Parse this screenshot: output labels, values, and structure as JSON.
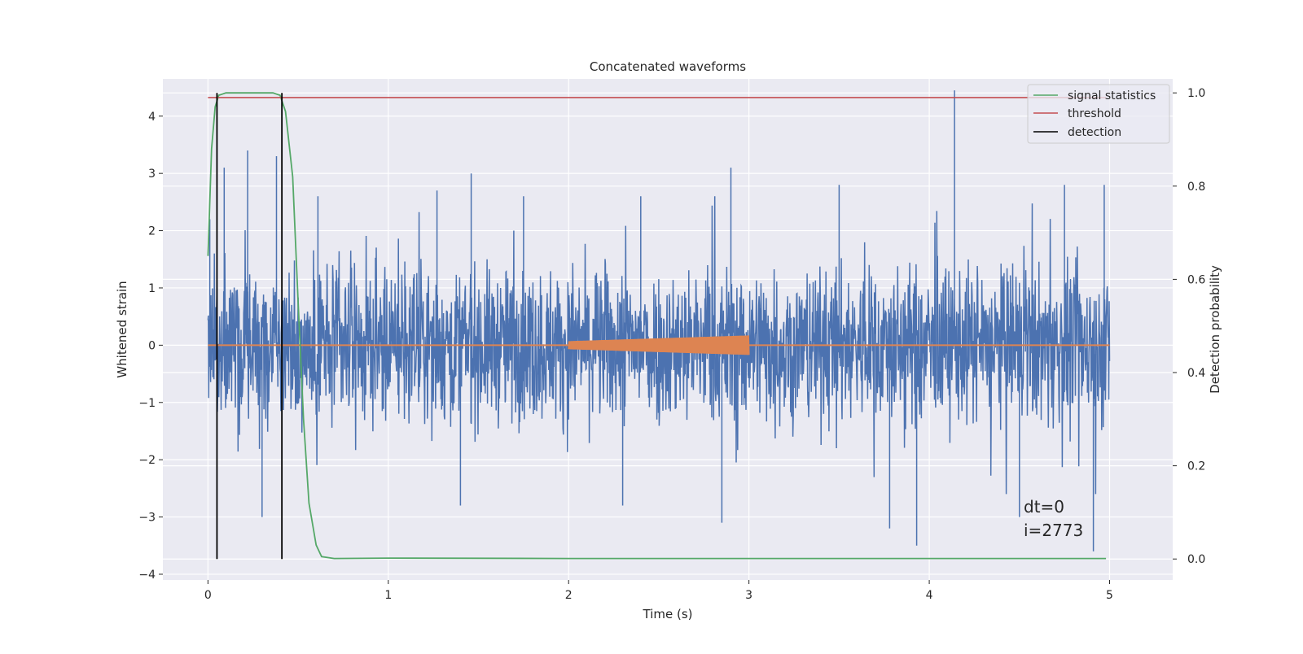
{
  "chart_data": {
    "type": "line",
    "title": "Concatenated waveforms",
    "xlabel": "Time (s)",
    "ylabel": "Whitened strain",
    "ylabel_right": "Detection probability",
    "xlim": [
      -0.25,
      5.35
    ],
    "ylim": [
      -4.1,
      4.65
    ],
    "ylim_right": [
      -0.045,
      1.03
    ],
    "x_ticks": [
      0,
      1,
      2,
      3,
      4,
      5
    ],
    "y_ticks": [
      -4,
      -3,
      -2,
      -1,
      0,
      1,
      2,
      3,
      4
    ],
    "y_ticks_right": [
      0.0,
      0.2,
      0.4,
      0.6,
      0.8,
      1.0
    ],
    "x_tick_labels": [
      "0",
      "1",
      "2",
      "3",
      "4",
      "5"
    ],
    "y_tick_labels": [
      "−4",
      "−3",
      "−2",
      "−1",
      "0",
      "1",
      "2",
      "3",
      "4"
    ],
    "y_tick_labels_right": [
      "0.0",
      "0.2",
      "0.4",
      "0.6",
      "0.8",
      "1.0"
    ],
    "grid": true,
    "legend_position": "top-right",
    "legend": [
      {
        "label": "signal statistics",
        "color": "#55a868"
      },
      {
        "label": "threshold",
        "color": "#c44e52"
      },
      {
        "label": "detection",
        "color": "#000000"
      }
    ],
    "series": [
      {
        "kind": "noise",
        "color": "#4c72b0",
        "axis": "left",
        "x_range": [
          0,
          5
        ],
        "typical_amplitude": 1.2,
        "peak_values": [
          {
            "x": 0.01,
            "y": 2.2
          },
          {
            "x": 0.09,
            "y": 3.1
          },
          {
            "x": 0.22,
            "y": 3.4
          },
          {
            "x": 0.38,
            "y": 3.3
          },
          {
            "x": 0.61,
            "y": 2.6
          },
          {
            "x": 1.27,
            "y": 2.7
          },
          {
            "x": 1.46,
            "y": 3.0
          },
          {
            "x": 1.75,
            "y": 2.6
          },
          {
            "x": 2.4,
            "y": 2.6
          },
          {
            "x": 2.9,
            "y": 3.1
          },
          {
            "x": 3.5,
            "y": 2.8
          },
          {
            "x": 4.14,
            "y": 4.45
          },
          {
            "x": 4.75,
            "y": 2.8
          },
          {
            "x": 4.97,
            "y": 2.8
          },
          {
            "x": 0.3,
            "y": -3.0
          },
          {
            "x": 1.4,
            "y": -2.8
          },
          {
            "x": 2.3,
            "y": -2.8
          },
          {
            "x": 2.85,
            "y": -3.1
          },
          {
            "x": 3.78,
            "y": -3.2
          },
          {
            "x": 3.93,
            "y": -3.5
          },
          {
            "x": 4.5,
            "y": -3.0
          },
          {
            "x": 4.91,
            "y": -3.6
          }
        ]
      },
      {
        "kind": "chirp",
        "color": "#dd8452",
        "axis": "left",
        "baseline": 0,
        "start": 2.0,
        "end": 3.0,
        "amplitude_start": 0.07,
        "amplitude_end": 0.17
      },
      {
        "name": "signal statistics",
        "color": "#55a868",
        "axis": "right",
        "x": [
          0,
          0.02,
          0.04,
          0.06,
          0.1,
          0.2,
          0.36,
          0.4,
          0.43,
          0.47,
          0.5,
          0.53,
          0.56,
          0.6,
          0.63,
          0.7,
          1.0,
          2.0,
          3.0,
          4.0,
          4.98
        ],
        "y": [
          0.65,
          0.88,
          0.97,
          0.995,
          1.0,
          1.0,
          1.0,
          0.995,
          0.96,
          0.82,
          0.55,
          0.3,
          0.12,
          0.03,
          0.005,
          0.001,
          0.002,
          0.001,
          0.001,
          0.001,
          0.001
        ]
      },
      {
        "name": "threshold",
        "color": "#c44e52",
        "axis": "right",
        "x": [
          0,
          4.98
        ],
        "y": [
          0.99,
          0.99
        ]
      }
    ],
    "detections": [
      0.05,
      0.41
    ],
    "annotation": {
      "line1": "dt=0",
      "line2": "i=2773",
      "x": 4.5,
      "y": -3.15
    }
  }
}
